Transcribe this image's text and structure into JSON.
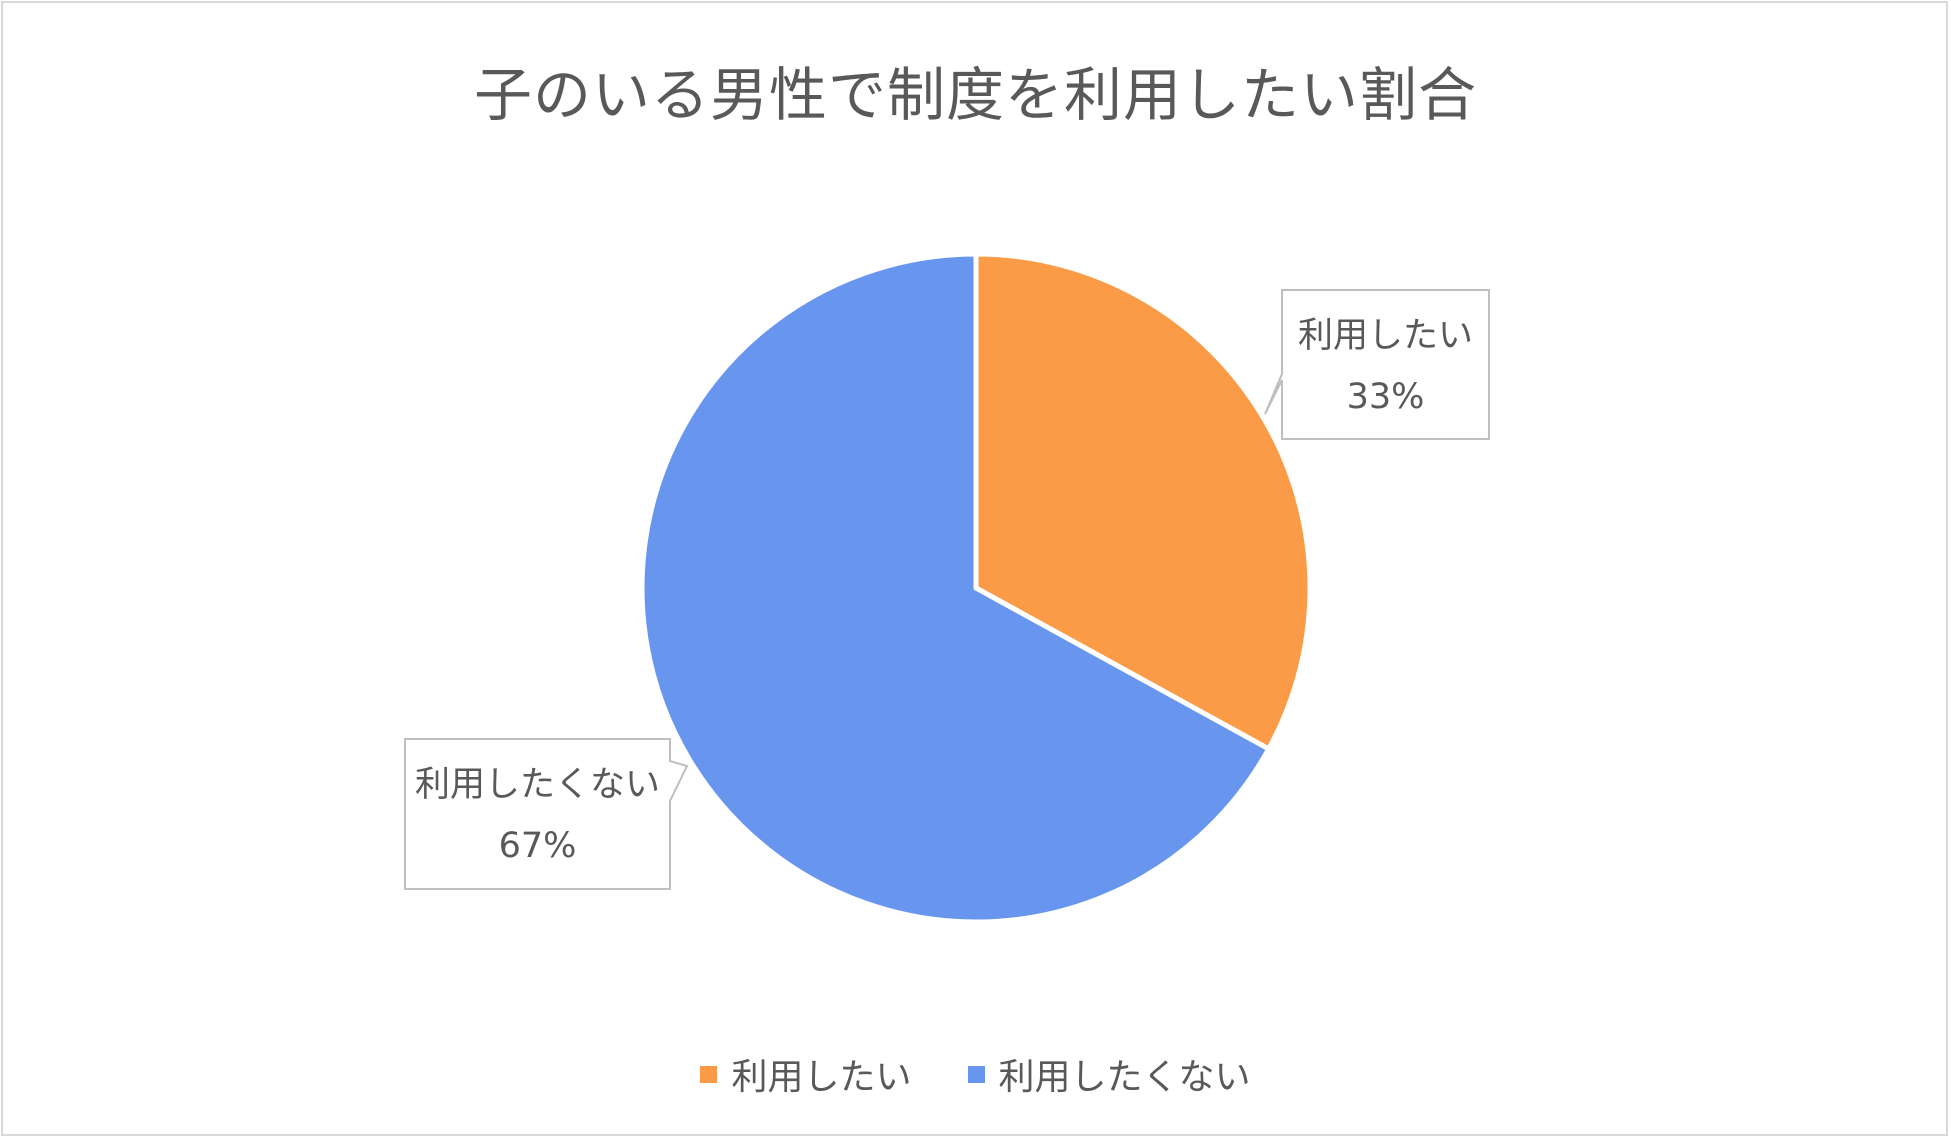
{
  "chart_data": {
    "type": "pie",
    "title": "子のいる男性で制度を利用したい割合",
    "slices": [
      {
        "label": "利用したい",
        "value": 33,
        "value_label": "33%",
        "color": "#fb9a47"
      },
      {
        "label": "利用したくない",
        "value": 67,
        "value_label": "67%",
        "color": "#6896ee"
      }
    ],
    "legend_position": "bottom"
  }
}
